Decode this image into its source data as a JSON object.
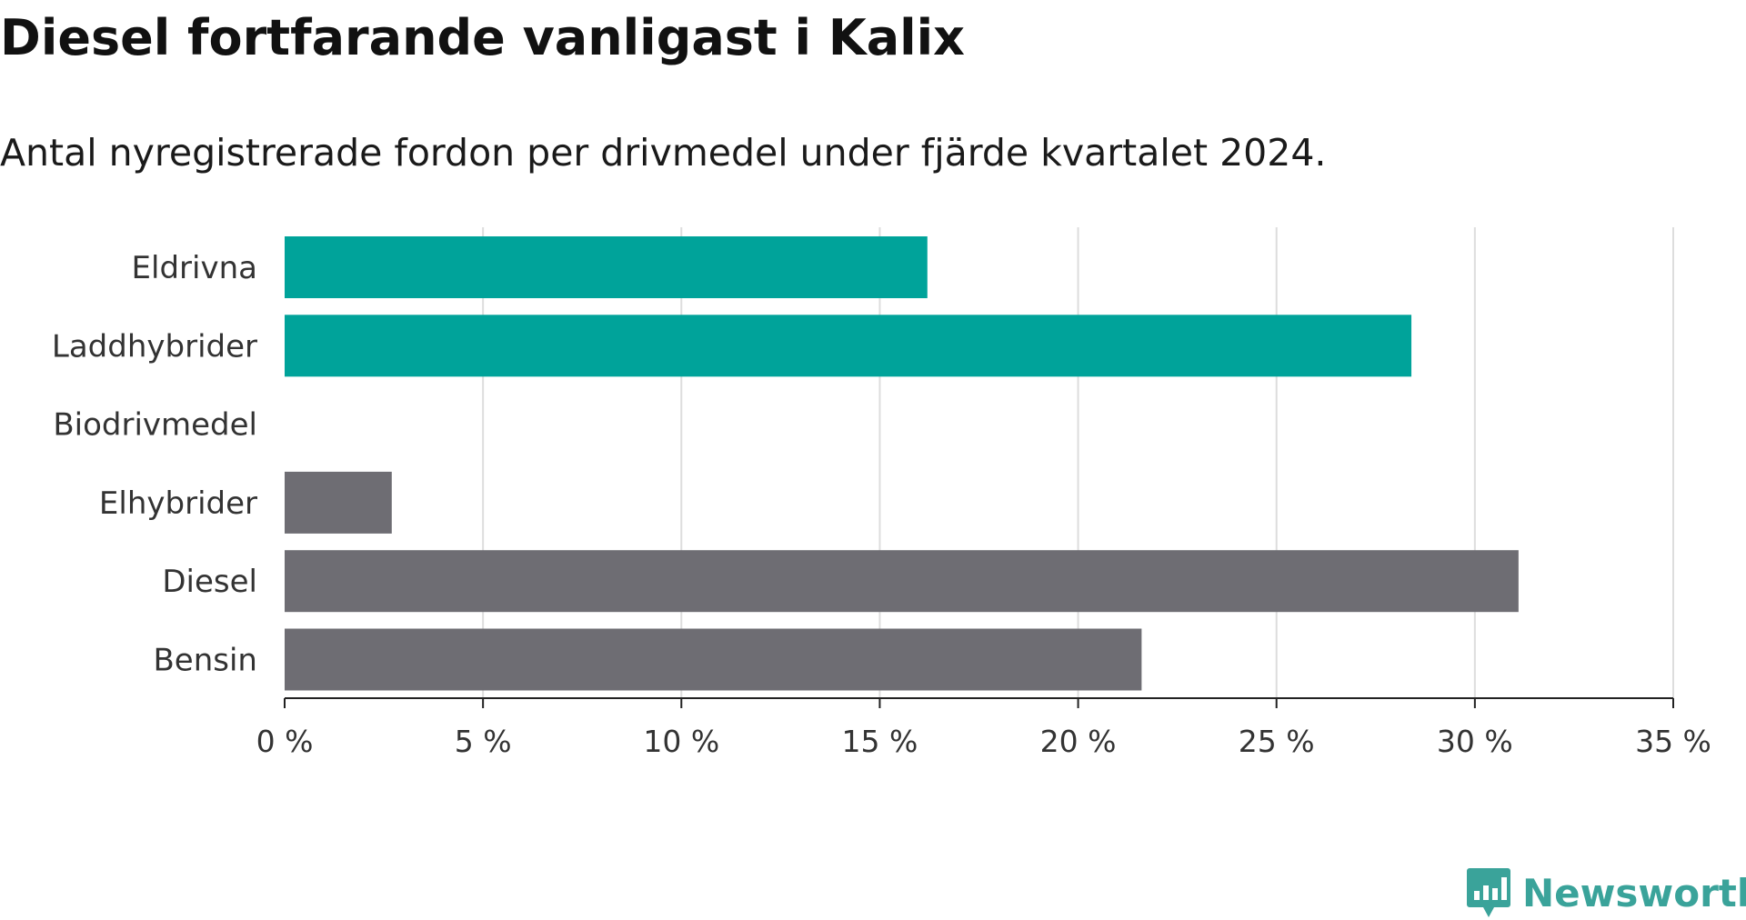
{
  "header": {
    "title": "Diesel fortfarande vanligast i Kalix",
    "subtitle": "Antal nyregistrerade fordon per drivmedel under fjärde kvartalet 2024."
  },
  "chart_data": {
    "type": "bar",
    "orientation": "horizontal",
    "title": "Diesel fortfarande vanligast i Kalix",
    "subtitle": "Antal nyregistrerade fordon per drivmedel under fjärde kvartalet 2024.",
    "categories": [
      "Eldrivna",
      "Laddhybrider",
      "Biodrivmedel",
      "Elhybrider",
      "Diesel",
      "Bensin"
    ],
    "values": [
      16.2,
      28.4,
      0,
      2.7,
      31.1,
      21.6
    ],
    "unit": "%",
    "xlim": [
      0,
      35
    ],
    "xticks": [
      0,
      5,
      10,
      15,
      20,
      25,
      30,
      35
    ],
    "xtick_labels": [
      "0 %",
      "5 %",
      "10 %",
      "15 %",
      "20 %",
      "25 %",
      "30 %",
      "35 %"
    ],
    "grid": "vertical",
    "legend": "none",
    "colors": {
      "highlight": "#00a39a",
      "default": "#6e6d73",
      "grid": "#dddddd",
      "axis": "#222222"
    },
    "highlighted": [
      true,
      true,
      true,
      false,
      false,
      false
    ]
  },
  "footer": {
    "brand": "Newsworthy",
    "brand_color": "#3aa39a",
    "brand_icon": "bar-chart-speech-bubble-icon"
  }
}
